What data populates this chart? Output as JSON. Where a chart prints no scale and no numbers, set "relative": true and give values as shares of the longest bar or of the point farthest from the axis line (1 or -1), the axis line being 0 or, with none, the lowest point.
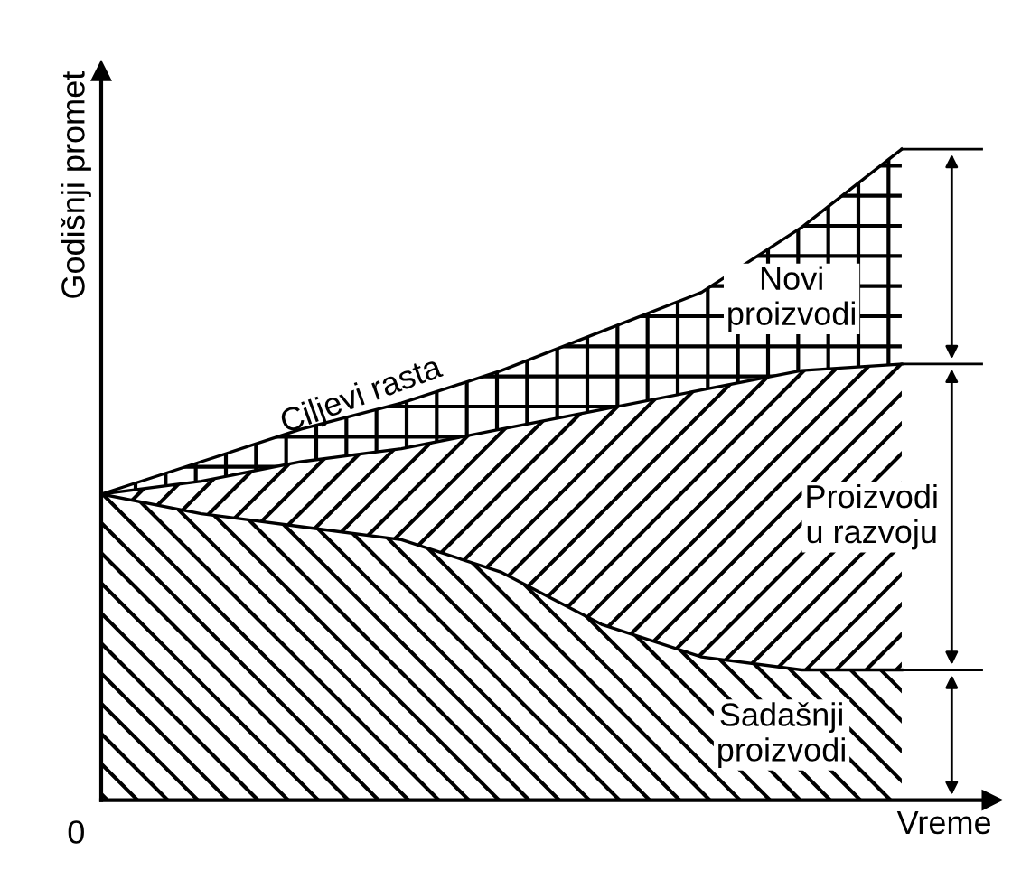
{
  "chart_data": {
    "type": "area",
    "stacked": true,
    "relative": true,
    "xlabel": "Vreme",
    "ylabel": "Godišnji promet",
    "categories": [
      null,
      null,
      null,
      null,
      null,
      null,
      null,
      null,
      null
    ],
    "series": [
      {
        "name": "Sadašnji proizvodi",
        "color": "#000000",
        "values": [
          0.47,
          0.44,
          0.42,
          0.4,
          0.35,
          0.27,
          0.22,
          0.2,
          0.2
        ]
      },
      {
        "name": "Proizvodi u razvoju",
        "color": "#000000",
        "values": [
          0,
          0.05,
          0.1,
          0.14,
          0.22,
          0.33,
          0.41,
          0.46,
          0.47
        ]
      },
      {
        "name": "Novi proizvodi",
        "color": "#000000",
        "values": [
          0,
          0.03,
          0.05,
          0.07,
          0.09,
          0.12,
          0.15,
          0.22,
          0.33
        ]
      }
    ],
    "annotations": [
      "Ciljevi rasta",
      "0"
    ]
  }
}
